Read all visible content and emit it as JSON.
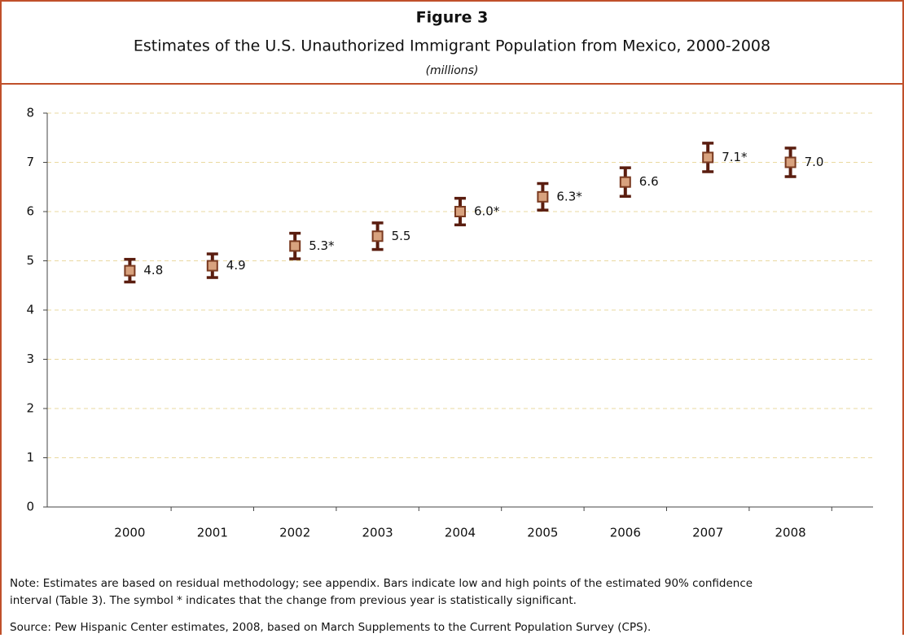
{
  "chart_data": {
    "type": "errorbar",
    "title": "Figure 3",
    "subtitle": "Estimates of the U.S. Unauthorized Immigrant Population from Mexico, 2000-2008",
    "unit_label": "(millions)",
    "categories": [
      "2000",
      "2001",
      "2002",
      "2003",
      "2004",
      "2005",
      "2006",
      "2007",
      "2008"
    ],
    "values": [
      4.8,
      4.9,
      5.3,
      5.5,
      6.0,
      6.3,
      6.6,
      7.1,
      7.0
    ],
    "value_labels": [
      "4.8",
      "4.9",
      "5.3*",
      "5.5",
      "6.0*",
      "6.3*",
      "6.6",
      "7.1*",
      "7.0"
    ],
    "errors": [
      0.23,
      0.24,
      0.26,
      0.27,
      0.27,
      0.27,
      0.29,
      0.29,
      0.29
    ],
    "color": "#d8a27e",
    "error_color": "#5a1d0f",
    "ylim": [
      0,
      8
    ],
    "yticks": [
      0,
      1,
      2,
      3,
      4,
      5,
      6,
      7,
      8
    ],
    "grid": true,
    "note": "Note: Estimates are based on residual methodology; see appendix. Bars indicate low and high points of the estimated 90% confidence",
    "note_2": "interval (Table 3). The symbol * indicates that the change from previous year is statistically significant.",
    "source": "Source: Pew Hispanic Center estimates, 2008, based on March Supplements to the Current Population Survey (CPS)."
  }
}
